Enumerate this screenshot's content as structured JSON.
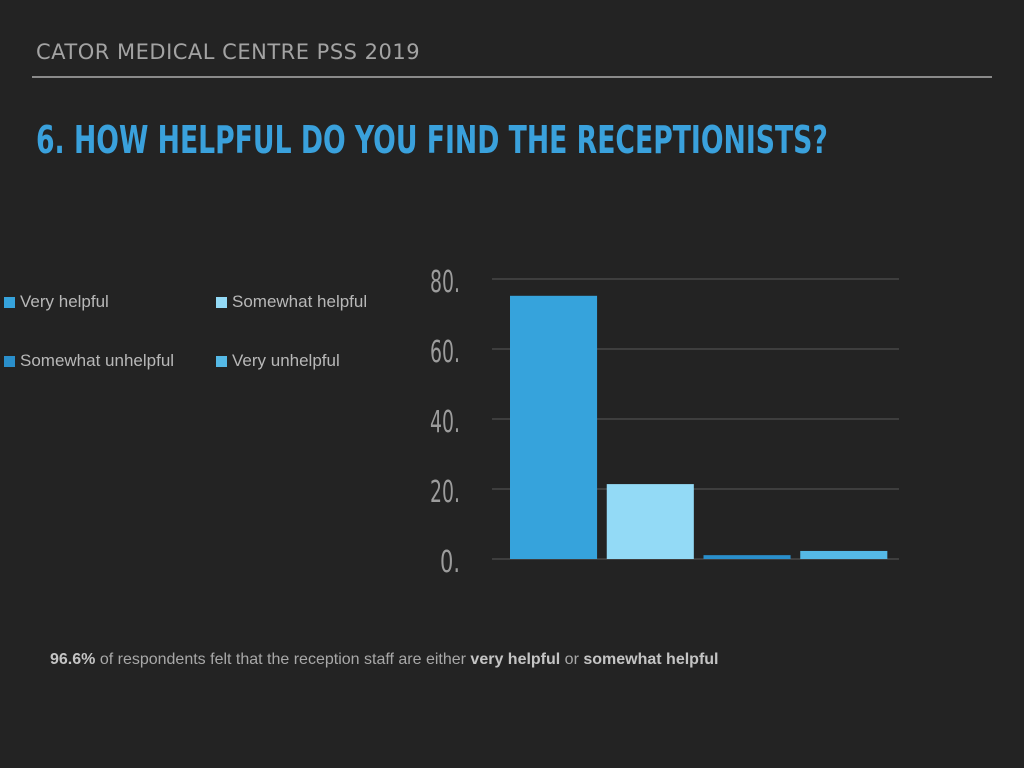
{
  "header": {
    "title": "CATOR MEDICAL CENTRE PSS 2019"
  },
  "question": {
    "title": "6. HOW HELPFUL DO YOU FIND THE RECEPTIONISTS?"
  },
  "colors": {
    "background": "#232323",
    "accent": "#3aa1dc",
    "very_helpful": "#36a3dc",
    "somewhat_helpful": "#93daf6",
    "somewhat_unhelpful": "#2a8fcb",
    "very_unhelpful": "#55b9e6"
  },
  "chart_data": {
    "type": "bar",
    "categories": [
      "Very helpful",
      "Somewhat helpful",
      "Somewhat unhelpful",
      "Very unhelpful"
    ],
    "values": [
      75.2,
      21.4,
      1.1,
      2.3
    ],
    "colors": [
      "#36a3dc",
      "#93daf6",
      "#2a8fcb",
      "#55b9e6"
    ],
    "yticks": [
      "0.",
      "20.",
      "40.",
      "60.",
      "80."
    ],
    "ytick_values": [
      0,
      20,
      40,
      60,
      80
    ],
    "ylim": [
      0,
      80
    ],
    "grid": true,
    "legend": {
      "position": "left",
      "entries": [
        "Very helpful",
        "Somewhat helpful",
        "Somewhat unhelpful",
        "Very unhelpful"
      ]
    }
  },
  "footnote": {
    "percent": "96.6%",
    "text_before": " of respondents felt that the reception staff are either ",
    "term1": "very helpful",
    "text_middle": " or ",
    "term2": "somewhat helpful"
  }
}
